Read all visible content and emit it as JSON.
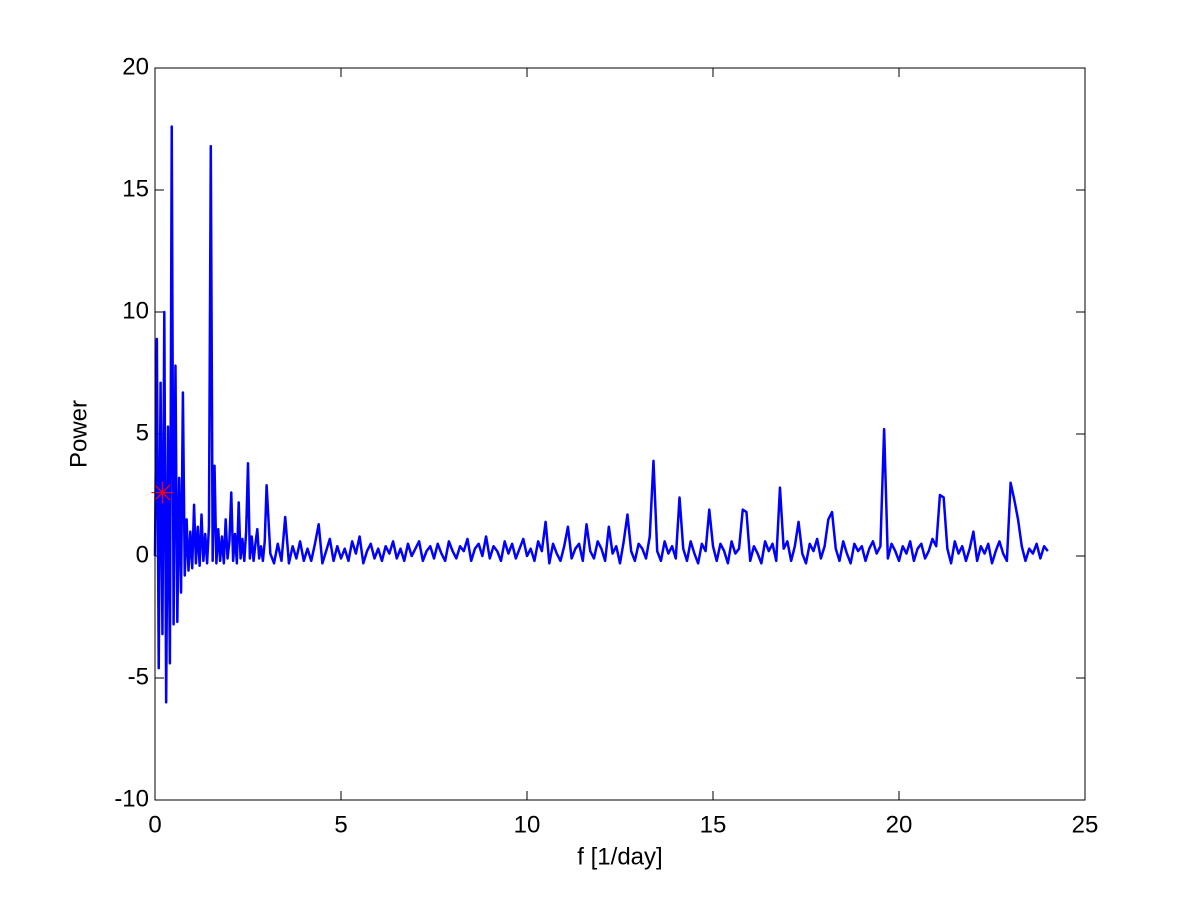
{
  "chart_data": {
    "type": "line",
    "xlabel": "f [1/day]",
    "ylabel": "Power",
    "xlim": [
      0,
      25
    ],
    "xticks": [
      0,
      5,
      10,
      15,
      20,
      25
    ],
    "ylim": [
      -10,
      20
    ],
    "yticks": [
      -10,
      -5,
      0,
      5,
      10,
      15,
      20
    ],
    "series": [
      {
        "color": "#0000ff",
        "marker": "none",
        "x": [
          0,
          0.05,
          0.1,
          0.15,
          0.2,
          0.25,
          0.3,
          0.35,
          0.4,
          0.45,
          0.5,
          0.55,
          0.6,
          0.65,
          0.7,
          0.75,
          0.8,
          0.85,
          0.9,
          0.95,
          1,
          1.05,
          1.1,
          1.15,
          1.2,
          1.25,
          1.3,
          1.35,
          1.4,
          1.45,
          1.5,
          1.55,
          1.6,
          1.65,
          1.7,
          1.75,
          1.8,
          1.85,
          1.9,
          1.95,
          2,
          2.05,
          2.1,
          2.15,
          2.2,
          2.25,
          2.3,
          2.35,
          2.4,
          2.45,
          2.5,
          2.55,
          2.6,
          2.65,
          2.7,
          2.75,
          2.8,
          2.85,
          2.9,
          2.95,
          3,
          3.1,
          3.2,
          3.3,
          3.4,
          3.5,
          3.6,
          3.7,
          3.8,
          3.9,
          4,
          4.1,
          4.2,
          4.3,
          4.4,
          4.5,
          4.6,
          4.7,
          4.8,
          4.9,
          5,
          5.1,
          5.2,
          5.3,
          5.4,
          5.5,
          5.6,
          5.7,
          5.8,
          5.9,
          6,
          6.1,
          6.2,
          6.3,
          6.4,
          6.5,
          6.6,
          6.7,
          6.8,
          6.9,
          7,
          7.1,
          7.2,
          7.3,
          7.4,
          7.5,
          7.6,
          7.7,
          7.8,
          7.9,
          8,
          8.1,
          8.2,
          8.3,
          8.4,
          8.5,
          8.6,
          8.7,
          8.8,
          8.9,
          9,
          9.1,
          9.2,
          9.3,
          9.4,
          9.5,
          9.6,
          9.7,
          9.8,
          9.9,
          10,
          10.1,
          10.2,
          10.3,
          10.4,
          10.5,
          10.6,
          10.7,
          10.8,
          10.9,
          11,
          11.1,
          11.2,
          11.3,
          11.4,
          11.5,
          11.6,
          11.7,
          11.8,
          11.9,
          12,
          12.1,
          12.2,
          12.3,
          12.4,
          12.5,
          12.6,
          12.7,
          12.8,
          12.9,
          13,
          13.1,
          13.2,
          13.3,
          13.4,
          13.5,
          13.6,
          13.7,
          13.8,
          13.9,
          14,
          14.1,
          14.2,
          14.3,
          14.4,
          14.5,
          14.6,
          14.7,
          14.8,
          14.9,
          15,
          15.1,
          15.2,
          15.3,
          15.4,
          15.5,
          15.6,
          15.7,
          15.8,
          15.9,
          16,
          16.1,
          16.2,
          16.3,
          16.4,
          16.5,
          16.6,
          16.7,
          16.8,
          16.9,
          17,
          17.1,
          17.2,
          17.3,
          17.4,
          17.5,
          17.6,
          17.7,
          17.8,
          17.9,
          18,
          18.1,
          18.2,
          18.3,
          18.4,
          18.5,
          18.6,
          18.7,
          18.8,
          18.9,
          19,
          19.1,
          19.2,
          19.3,
          19.4,
          19.5,
          19.6,
          19.7,
          19.8,
          19.9,
          20,
          20.1,
          20.2,
          20.3,
          20.4,
          20.5,
          20.6,
          20.7,
          20.8,
          20.9,
          21,
          21.1,
          21.2,
          21.3,
          21.4,
          21.5,
          21.6,
          21.7,
          21.8,
          21.9,
          22,
          22.1,
          22.2,
          22.3,
          22.4,
          22.5,
          22.6,
          22.7,
          22.8,
          22.9,
          23,
          23.1,
          23.2,
          23.3,
          23.4,
          23.5,
          23.6,
          23.7,
          23.8,
          23.9,
          24
        ],
        "values": [
          0,
          8.9,
          -4.6,
          7.1,
          -3.2,
          10.0,
          -6.0,
          5.3,
          -4.4,
          17.6,
          -2.8,
          7.8,
          -2.7,
          3.2,
          -1.5,
          6.7,
          -0.8,
          1.5,
          -0.6,
          1.0,
          -0.5,
          2.1,
          -0.3,
          1.2,
          -0.4,
          1.7,
          -0.2,
          0.9,
          -0.3,
          1.2,
          16.8,
          -0.2,
          3.7,
          -0.3,
          1.1,
          -0.2,
          0.8,
          -0.3,
          1.5,
          -0.1,
          0.6,
          2.6,
          -0.2,
          0.9,
          -0.3,
          2.2,
          -0.1,
          0.7,
          -0.2,
          1.0,
          3.8,
          -0.1,
          0.8,
          -0.2,
          0.5,
          1.1,
          -0.1,
          0.4,
          -0.2,
          0.6,
          2.9,
          0.1,
          -0.3,
          0.5,
          -0.2,
          1.6,
          -0.3,
          0.4,
          -0.1,
          0.6,
          -0.2,
          0.3,
          -0.2,
          0.5,
          1.3,
          -0.3,
          0.2,
          0.7,
          -0.2,
          0.4,
          -0.1,
          0.3,
          -0.2,
          0.6,
          0.1,
          0.8,
          -0.3,
          0.2,
          0.5,
          -0.1,
          0.3,
          -0.2,
          0.4,
          0.1,
          0.6,
          -0.1,
          0.3,
          -0.2,
          0.5,
          0.0,
          0.3,
          0.6,
          -0.2,
          0.2,
          0.4,
          -0.1,
          0.5,
          0.1,
          -0.2,
          0.6,
          0.2,
          -0.1,
          0.4,
          0.2,
          0.7,
          -0.2,
          0.3,
          0.5,
          0.0,
          0.8,
          -0.1,
          0.4,
          0.2,
          -0.2,
          0.6,
          0.1,
          0.5,
          -0.1,
          0.3,
          0.7,
          0.0,
          0.3,
          -0.2,
          0.6,
          0.2,
          1.4,
          -0.3,
          0.5,
          0.1,
          -0.2,
          0.4,
          1.2,
          -0.1,
          0.3,
          0.5,
          -0.2,
          1.3,
          0.2,
          -0.1,
          0.6,
          0.3,
          -0.2,
          1.2,
          0.1,
          0.4,
          -0.3,
          0.6,
          1.7,
          0.2,
          -0.2,
          0.5,
          0.3,
          -0.1,
          0.8,
          3.9,
          0.2,
          -0.2,
          0.6,
          0.1,
          0.4,
          -0.1,
          2.4,
          0.3,
          -0.2,
          0.6,
          0.1,
          -0.3,
          0.5,
          0.2,
          1.9,
          0.4,
          -0.2,
          0.5,
          0.2,
          -0.3,
          0.6,
          0.1,
          0.3,
          1.9,
          1.8,
          -0.2,
          0.4,
          0.1,
          -0.3,
          0.6,
          0.2,
          0.5,
          -0.2,
          2.8,
          0.3,
          0.6,
          -0.2,
          0.4,
          1.4,
          0.1,
          -0.3,
          0.5,
          0.2,
          0.7,
          -0.1,
          0.4,
          1.5,
          1.8,
          0.3,
          -0.2,
          0.6,
          0.1,
          -0.3,
          0.5,
          0.2,
          0.4,
          -0.2,
          0.3,
          0.6,
          0.1,
          0.4,
          5.2,
          -0.1,
          0.5,
          0.2,
          -0.2,
          0.4,
          0.1,
          0.6,
          -0.2,
          0.3,
          0.5,
          -0.1,
          0.2,
          0.7,
          0.4,
          2.5,
          2.4,
          0.3,
          -0.3,
          0.6,
          0.1,
          0.4,
          -0.2,
          0.3,
          1.0,
          -0.2,
          0.4,
          0.1,
          0.5,
          -0.3,
          0.2,
          0.6,
          0.1,
          -0.2,
          3.0,
          2.3,
          1.5,
          0.4,
          -0.2,
          0.3,
          0.1,
          0.5,
          -0.1,
          0.4,
          0.2
        ]
      },
      {
        "color": "#ff0000",
        "marker": "asterisk",
        "x": [
          0.2
        ],
        "values": [
          2.6
        ]
      }
    ]
  }
}
